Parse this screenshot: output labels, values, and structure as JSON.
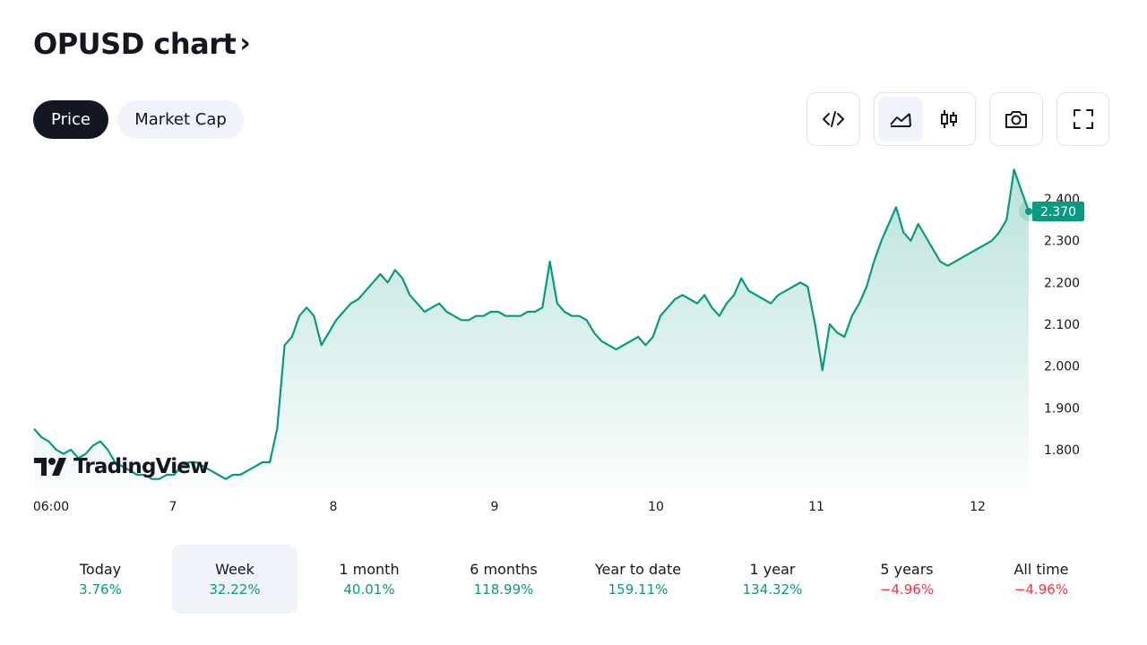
{
  "header": {
    "title": "OPUSD chart",
    "chevron": "›"
  },
  "tabs": [
    {
      "label": "Price",
      "active": true
    },
    {
      "label": "Market Cap",
      "active": false
    }
  ],
  "toolbar": {
    "icons": [
      "embed-code-icon",
      "area-chart-icon",
      "candlestick-icon",
      "camera-icon",
      "fullscreen-icon"
    ],
    "active_chart_style": "area"
  },
  "logo": {
    "text": "TradingView"
  },
  "colors": {
    "line": "#089981",
    "fill_top": "#089981",
    "label_bg": "#089981",
    "positive": "#089981",
    "negative": "#f23645"
  },
  "chart_data": {
    "type": "area",
    "xlabel": "",
    "ylabel": "",
    "x_ticks": [
      "06:00",
      "7",
      "8",
      "9",
      "10",
      "11",
      "12"
    ],
    "y_ticks": [
      "1.800",
      "1.900",
      "2.000",
      "2.100",
      "2.200",
      "2.300",
      "2.400"
    ],
    "ylim": [
      1.72,
      2.48
    ],
    "last_price_label": "2.370",
    "last_price": 2.37,
    "series": [
      {
        "values": [
          1.85,
          1.83,
          1.82,
          1.8,
          1.79,
          1.8,
          1.78,
          1.79,
          1.81,
          1.82,
          1.8,
          1.77,
          1.76,
          1.75,
          1.74,
          1.74,
          1.73,
          1.73,
          1.74,
          1.74,
          1.76,
          1.77,
          1.77,
          1.76,
          1.75,
          1.74,
          1.73,
          1.74,
          1.74,
          1.75,
          1.76,
          1.77,
          1.77,
          1.85,
          2.05,
          2.07,
          2.12,
          2.14,
          2.12,
          2.05,
          2.08,
          2.11,
          2.13,
          2.15,
          2.16,
          2.18,
          2.2,
          2.22,
          2.2,
          2.23,
          2.21,
          2.17,
          2.15,
          2.13,
          2.14,
          2.15,
          2.13,
          2.12,
          2.11,
          2.11,
          2.12,
          2.12,
          2.13,
          2.13,
          2.12,
          2.12,
          2.12,
          2.13,
          2.13,
          2.14,
          2.25,
          2.15,
          2.13,
          2.12,
          2.12,
          2.11,
          2.08,
          2.06,
          2.05,
          2.04,
          2.05,
          2.06,
          2.07,
          2.05,
          2.07,
          2.12,
          2.14,
          2.16,
          2.17,
          2.16,
          2.15,
          2.17,
          2.14,
          2.12,
          2.15,
          2.17,
          2.21,
          2.18,
          2.17,
          2.16,
          2.15,
          2.17,
          2.18,
          2.19,
          2.2,
          2.19,
          2.1,
          1.99,
          2.1,
          2.08,
          2.07,
          2.12,
          2.15,
          2.19,
          2.25,
          2.3,
          2.34,
          2.38,
          2.32,
          2.3,
          2.34,
          2.31,
          2.28,
          2.25,
          2.24,
          2.25,
          2.26,
          2.27,
          2.28,
          2.29,
          2.3,
          2.32,
          2.35,
          2.47,
          2.42,
          2.37
        ]
      }
    ]
  },
  "periods": [
    {
      "label": "Today",
      "value": "3.76%",
      "sign": "pos",
      "active": false
    },
    {
      "label": "Week",
      "value": "32.22%",
      "sign": "pos",
      "active": true
    },
    {
      "label": "1 month",
      "value": "40.01%",
      "sign": "pos",
      "active": false
    },
    {
      "label": "6 months",
      "value": "118.99%",
      "sign": "pos",
      "active": false
    },
    {
      "label": "Year to date",
      "value": "159.11%",
      "sign": "pos",
      "active": false
    },
    {
      "label": "1 year",
      "value": "134.32%",
      "sign": "pos",
      "active": false
    },
    {
      "label": "5 years",
      "value": "−4.96%",
      "sign": "neg",
      "active": false
    },
    {
      "label": "All time",
      "value": "−4.96%",
      "sign": "neg",
      "active": false
    }
  ]
}
